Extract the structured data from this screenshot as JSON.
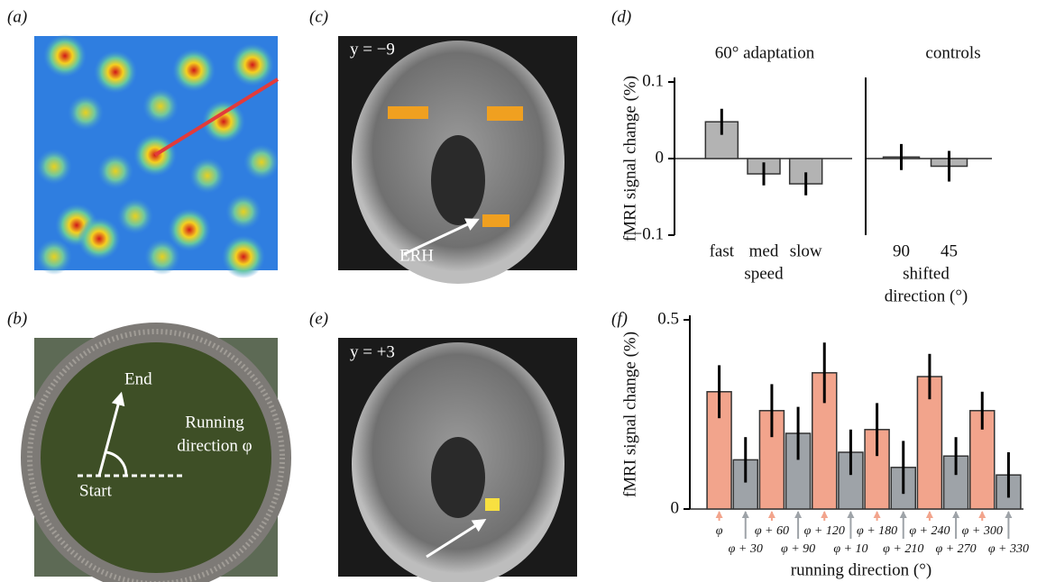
{
  "panels": {
    "a": "(a)",
    "b": "(b)",
    "c": "(c)",
    "d": "(d)",
    "e": "(e)",
    "f": "(f)"
  },
  "images": {
    "c_label": "y = −9",
    "c_arrow": "ERH",
    "e_label": "y = +3",
    "b_end": "End",
    "b_running": "Running",
    "b_direction": "direction φ",
    "b_start": "Start"
  },
  "chart_data": [
    {
      "type": "bar",
      "title": "60° adaptation",
      "ylabel": "fMRI signal change (%)",
      "xlabel": [
        "speed"
      ],
      "categories": [
        "fast",
        "med",
        "slow"
      ],
      "values": [
        0.048,
        -0.02,
        -0.033
      ],
      "errors": [
        0.017,
        0.015,
        0.015
      ],
      "colors": [
        "#b3b3b3",
        "#b3b3b3",
        "#b3b3b3"
      ],
      "ylim": [
        -0.1,
        0.1
      ],
      "yticks": [
        {
          "value": 0.1,
          "label": "0.1"
        },
        0,
        {
          "value": -0.1,
          "label": "−0.1"
        }
      ]
    },
    {
      "type": "bar",
      "title": "controls",
      "xlabel": [
        "shifted",
        "direction (°)"
      ],
      "categories": [
        "90",
        "45"
      ],
      "values": [
        0.002,
        -0.01
      ],
      "errors": [
        0.017,
        0.02
      ],
      "colors": [
        "#b3b3b3",
        "#b3b3b3"
      ],
      "ylim": [
        -0.1,
        0.1
      ]
    },
    {
      "type": "bar",
      "ylabel": "fMRI signal change (%)",
      "xlabel": [
        "running direction (°)"
      ],
      "categories": [
        "φ",
        "φ + 30",
        "φ + 60",
        "φ + 90",
        "φ + 120",
        "φ + 10",
        "φ + 180",
        "φ + 210",
        "φ + 240",
        "φ + 270",
        "φ + 300",
        "φ + 330"
      ],
      "values": [
        0.31,
        0.13,
        0.26,
        0.2,
        0.36,
        0.15,
        0.21,
        0.11,
        0.35,
        0.14,
        0.26,
        0.09
      ],
      "errors": [
        0.07,
        0.06,
        0.07,
        0.07,
        0.08,
        0.06,
        0.07,
        0.07,
        0.06,
        0.05,
        0.05,
        0.06
      ],
      "colors": [
        "#f2a48c",
        "#9ea3a8",
        "#f2a48c",
        "#9ea3a8",
        "#f2a48c",
        "#9ea3a8",
        "#f2a48c",
        "#9ea3a8",
        "#f2a48c",
        "#9ea3a8",
        "#f2a48c",
        "#9ea3a8"
      ],
      "ylim": [
        0,
        0.5
      ],
      "yticks": [
        {
          "value": 0.5,
          "label": "0.5"
        },
        0
      ]
    }
  ]
}
